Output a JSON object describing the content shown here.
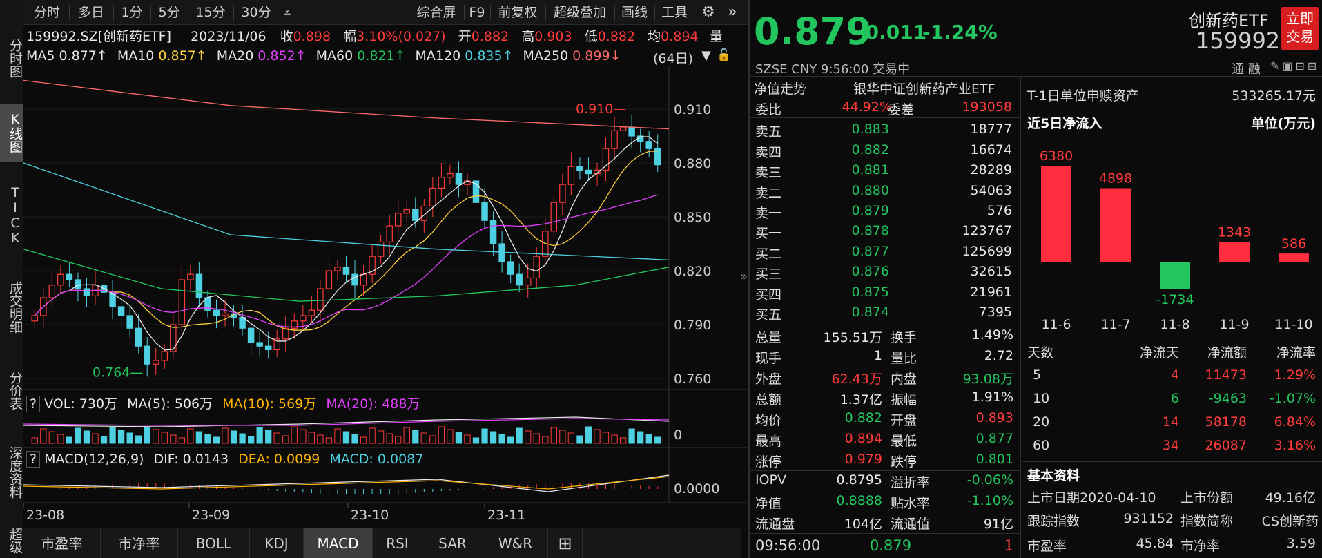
{
  "nav": [
    "分时图",
    "K线图",
    "TICK",
    "成交明细",
    "分价表",
    "深度资料",
    "超级"
  ],
  "toptabs": [
    "分时",
    "多日",
    "1分",
    "5分",
    "15分",
    "30分",
    "综合屏",
    "F9",
    "前复权",
    "超级叠加",
    "画线",
    "工具"
  ],
  "quote": {
    "code": "159992.SZ[创新药ETF]",
    "date": "2023/11/06",
    "close_label": "收",
    "close": "0.898",
    "amp_label": "幅",
    "amp": "3.10%(0.027)",
    "open_label": "开",
    "open": "0.882",
    "high_label": "高",
    "high": "0.903",
    "low_label": "低",
    "low": "0.882",
    "avg_label": "均",
    "avg": "0.894",
    "vol_label": "量"
  },
  "ma": [
    {
      "label": "MA5",
      "value": "0.877↑",
      "color": "#e8e8e8"
    },
    {
      "label": "MA10",
      "value": "0.857↑",
      "color": "#ffd23f"
    },
    {
      "label": "MA20",
      "value": "0.852↑",
      "color": "#e040fb"
    },
    {
      "label": "MA60",
      "value": "0.821↑",
      "color": "#22c55e"
    },
    {
      "label": "MA120",
      "value": "0.835↑",
      "color": "#4dd0e1"
    },
    {
      "label": "MA250",
      "value": "0.899↓",
      "color": "#ff6b6b"
    }
  ],
  "period": "(64日)",
  "chart_data": {
    "type": "candlestick",
    "y_ticks": [
      "0.910",
      "0.880",
      "0.850",
      "0.820",
      "0.790",
      "0.760"
    ],
    "x_labels": [
      "23-08",
      "23-09",
      "23-10",
      "23-11"
    ],
    "high_marker": "0.910",
    "low_marker": "0.764",
    "vol_label": "VOL: 730万",
    "vol_ma5": "MA(5): 506万",
    "vol_ma10": "MA(10): 569万",
    "vol_ma20": "MA(20): 488万",
    "vol_tick": "0",
    "macd_label": "MACD(12,26,9)",
    "dif": "DIF: 0.0143",
    "dea": "DEA: 0.0099",
    "macd": "MACD: 0.0087",
    "macd_tick": "0.0000"
  },
  "bottom_tabs": [
    "市盈率",
    "市净率",
    "BOLL",
    "KDJ",
    "MACD",
    "RSI",
    "SAR",
    "W&R",
    "⊞"
  ],
  "header": {
    "price": "0.879",
    "change": "-0.011",
    "pct": "-1.24%",
    "name": "创新药ETF",
    "code": "159992",
    "trade_btn": "立即交易",
    "exchange": "SZSE  CNY  9:56:00  交易中",
    "tong": "通",
    "rong": "融"
  },
  "nav_title": "净值走势",
  "fund_name": "银华中证创新药产业ETF",
  "weibi": {
    "label": "委比",
    "value": "44.92%",
    "label2": "委差",
    "value2": "193058"
  },
  "asks": [
    {
      "label": "卖五",
      "price": "0.883",
      "vol": "18777"
    },
    {
      "label": "卖四",
      "price": "0.882",
      "vol": "16674"
    },
    {
      "label": "卖三",
      "price": "0.881",
      "vol": "28289"
    },
    {
      "label": "卖二",
      "price": "0.880",
      "vol": "54063"
    },
    {
      "label": "卖一",
      "price": "0.879",
      "vol": "576"
    }
  ],
  "bids": [
    {
      "label": "买一",
      "price": "0.878",
      "vol": "123767"
    },
    {
      "label": "买二",
      "price": "0.877",
      "vol": "125699"
    },
    {
      "label": "买三",
      "price": "0.876",
      "vol": "32615"
    },
    {
      "label": "买四",
      "price": "0.875",
      "vol": "21961"
    },
    {
      "label": "买五",
      "price": "0.874",
      "vol": "7395"
    }
  ],
  "stats": [
    {
      "l1": "总量",
      "v1": "155.51万",
      "c1": "white",
      "l2": "换手",
      "v2": "1.49%",
      "c2": "white"
    },
    {
      "l1": "现手",
      "v1": "1",
      "c1": "white",
      "l2": "量比",
      "v2": "2.72",
      "c2": "white"
    },
    {
      "l1": "外盘",
      "v1": "62.43万",
      "c1": "red",
      "l2": "内盘",
      "v2": "93.08万",
      "c2": "green"
    },
    {
      "l1": "总额",
      "v1": "1.37亿",
      "c1": "white",
      "l2": "振幅",
      "v2": "1.91%",
      "c2": "white"
    },
    {
      "l1": "均价",
      "v1": "0.882",
      "c1": "green",
      "l2": "开盘",
      "v2": "0.893",
      "c2": "red"
    },
    {
      "l1": "最高",
      "v1": "0.894",
      "c1": "red",
      "l2": "最低",
      "v2": "0.877",
      "c2": "green"
    },
    {
      "l1": "涨停",
      "v1": "0.979",
      "c1": "red",
      "l2": "跌停",
      "v2": "0.801",
      "c2": "green"
    },
    {
      "l1": "IOPV",
      "v1": "0.8795",
      "c1": "white",
      "l2": "溢折率",
      "v2": "-0.06%",
      "c2": "green"
    },
    {
      "l1": "净值",
      "v1": "0.8888",
      "c1": "green",
      "l2": "贴水率",
      "v2": "-1.10%",
      "c2": "green"
    },
    {
      "l1": "流通盘",
      "v1": "104亿",
      "c1": "white",
      "l2": "流通值",
      "v2": "91亿",
      "c2": "white"
    }
  ],
  "last_trade": {
    "time": "09:56:00",
    "price": "0.879",
    "vol": "1"
  },
  "flow": {
    "t1_label": "T-1日单位申赎资产",
    "t1_value": "533265.17元",
    "title": "近5日净流入",
    "unit": "单位(万元)",
    "dates": [
      "11-6",
      "11-7",
      "11-8",
      "11-9",
      "11-10"
    ],
    "values": [
      6380,
      4898,
      -1734,
      1343,
      586
    ],
    "value_labels": [
      "6380",
      "4898",
      "-1734",
      "1343",
      "586"
    ]
  },
  "flow_table": {
    "headers": [
      "天数",
      "净流天",
      "净流额",
      "净流率"
    ],
    "rows": [
      {
        "d": "5",
        "n": "4",
        "a": "11473",
        "r": "1.29%",
        "c": "red"
      },
      {
        "d": "10",
        "n": "6",
        "a": "-9463",
        "r": "-1.07%",
        "c": "green"
      },
      {
        "d": "20",
        "n": "14",
        "a": "58178",
        "r": "6.84%",
        "c": "red"
      },
      {
        "d": "60",
        "n": "34",
        "a": "26087",
        "r": "3.16%",
        "c": "red"
      }
    ]
  },
  "basic": {
    "title": "基本资料",
    "list_date_label": "上市日期",
    "list_date": "2020-04-10",
    "shares_label": "上市份额",
    "shares": "49.16亿",
    "index_label": "跟踪指数",
    "index": "931152",
    "index_short_label": "指数简称",
    "index_short": "CS创新药",
    "pe_label": "市盈率",
    "pe": "45.84",
    "pb_label": "市净率",
    "pb": "3.59"
  }
}
